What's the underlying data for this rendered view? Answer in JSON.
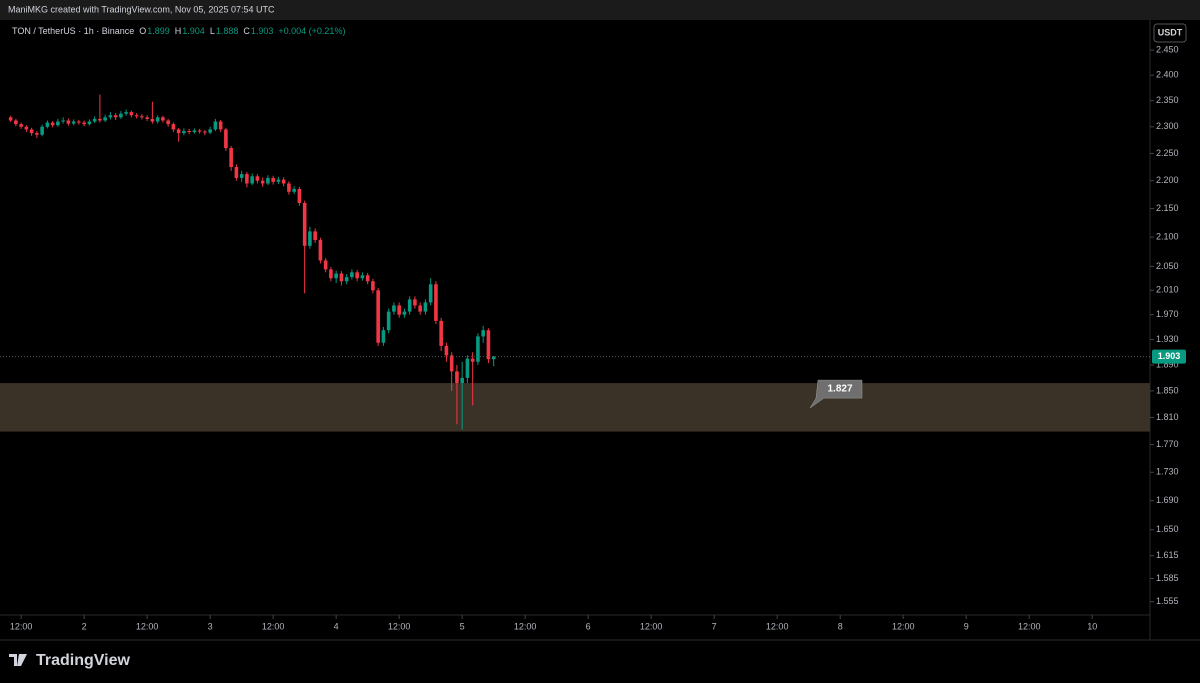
{
  "header": {
    "attribution": "ManiMKG created with TradingView.com, Nov 05, 2025 07:54 UTC"
  },
  "footer": {
    "brand": "TradingView"
  },
  "chart_data": {
    "type": "candlestick",
    "symbol": "TON / TetherUS · 1h · Binance",
    "ohlc_labels": [
      "O",
      "H",
      "L",
      "C"
    ],
    "change": "+0.004 (+0.21%)",
    "currency": "USDT",
    "up_color": "#089981",
    "down_color": "#f23645",
    "log_scale": true,
    "grid": false,
    "x": [
      10,
      11,
      12,
      13,
      14,
      15,
      16,
      17,
      18,
      19,
      20,
      21,
      22,
      23,
      24,
      25,
      26,
      27,
      28,
      29,
      30,
      31,
      32,
      33,
      34,
      35,
      36,
      37,
      38,
      39,
      40,
      41,
      42,
      43,
      44,
      45,
      46,
      47,
      48,
      49,
      50,
      51,
      52,
      53,
      54,
      55,
      56,
      57,
      58,
      59,
      60,
      61,
      62,
      63,
      64,
      65,
      66,
      67,
      68,
      69,
      70,
      71,
      72,
      73,
      74,
      75,
      76,
      77,
      78,
      79,
      80,
      81,
      82,
      83,
      84,
      85,
      86,
      87,
      88,
      89,
      90,
      91,
      92,
      93,
      94,
      95,
      96,
      97,
      98,
      99,
      100,
      101,
      102
    ],
    "open": [
      2.318,
      2.312,
      2.305,
      2.3,
      2.295,
      2.288,
      2.285,
      2.3,
      2.308,
      2.303,
      2.31,
      2.312,
      2.306,
      2.31,
      2.308,
      2.305,
      2.31,
      2.315,
      2.312,
      2.318,
      2.322,
      2.318,
      2.325,
      2.328,
      2.322,
      2.32,
      2.318,
      2.315,
      2.31,
      2.318,
      2.312,
      2.305,
      2.295,
      2.288,
      2.292,
      2.29,
      2.293,
      2.291,
      2.289,
      2.295,
      2.31,
      2.295,
      2.26,
      2.225,
      2.205,
      2.212,
      2.195,
      2.208,
      2.2,
      2.195,
      2.205,
      2.198,
      2.202,
      2.195,
      2.18,
      2.185,
      2.16,
      2.085,
      2.11,
      2.095,
      2.06,
      2.045,
      2.03,
      2.038,
      2.025,
      2.032,
      2.04,
      2.03,
      2.035,
      2.025,
      2.01,
      1.925,
      1.945,
      1.975,
      1.985,
      1.97,
      1.975,
      1.995,
      1.985,
      1.975,
      1.99,
      2.02,
      1.96,
      1.92,
      1.905,
      1.88,
      1.862,
      1.87,
      1.9,
      1.895,
      1.935,
      1.945,
      1.899
    ],
    "high": [
      2.321,
      2.315,
      2.308,
      2.303,
      2.298,
      2.292,
      2.304,
      2.312,
      2.311,
      2.315,
      2.318,
      2.316,
      2.314,
      2.313,
      2.312,
      2.314,
      2.32,
      2.362,
      2.323,
      2.328,
      2.326,
      2.33,
      2.333,
      2.331,
      2.326,
      2.324,
      2.322,
      2.348,
      2.322,
      2.321,
      2.315,
      2.308,
      2.298,
      2.297,
      2.296,
      2.297,
      2.296,
      2.294,
      2.3,
      2.315,
      2.313,
      2.298,
      2.264,
      2.23,
      2.218,
      2.216,
      2.213,
      2.212,
      2.206,
      2.21,
      2.209,
      2.207,
      2.206,
      2.199,
      2.19,
      2.189,
      2.164,
      2.118,
      2.115,
      2.099,
      2.064,
      2.049,
      2.043,
      2.042,
      2.037,
      2.045,
      2.044,
      2.04,
      2.039,
      2.029,
      2.014,
      1.95,
      1.98,
      1.99,
      1.99,
      1.98,
      2.0,
      2.0,
      1.99,
      1.995,
      2.03,
      2.025,
      1.965,
      1.925,
      1.91,
      1.89,
      1.895,
      1.905,
      1.91,
      1.94,
      1.952,
      1.948,
      1.904
    ],
    "low": [
      2.309,
      2.301,
      2.296,
      2.29,
      2.283,
      2.279,
      2.282,
      2.297,
      2.299,
      2.3,
      2.306,
      2.302,
      2.303,
      2.304,
      2.301,
      2.302,
      2.307,
      2.308,
      2.309,
      2.314,
      2.313,
      2.315,
      2.321,
      2.318,
      2.316,
      2.314,
      2.311,
      2.306,
      2.306,
      2.308,
      2.3,
      2.29,
      2.272,
      2.284,
      2.286,
      2.287,
      2.287,
      2.284,
      2.286,
      2.292,
      2.29,
      2.255,
      2.218,
      2.2,
      2.198,
      2.188,
      2.192,
      2.195,
      2.189,
      2.192,
      2.193,
      2.194,
      2.19,
      2.175,
      2.176,
      2.155,
      2.005,
      2.08,
      2.09,
      2.055,
      2.04,
      2.025,
      2.022,
      2.018,
      2.02,
      2.028,
      2.025,
      2.026,
      2.02,
      2.005,
      1.92,
      1.92,
      1.94,
      1.97,
      1.965,
      1.965,
      1.97,
      1.98,
      1.97,
      1.97,
      1.985,
      1.955,
      1.912,
      1.895,
      1.85,
      1.8,
      1.792,
      1.862,
      1.828,
      1.89,
      1.925,
      1.893,
      1.888
    ],
    "close": [
      2.312,
      2.305,
      2.3,
      2.295,
      2.288,
      2.285,
      2.3,
      2.308,
      2.303,
      2.31,
      2.312,
      2.306,
      2.31,
      2.308,
      2.305,
      2.31,
      2.315,
      2.312,
      2.318,
      2.322,
      2.318,
      2.325,
      2.328,
      2.322,
      2.32,
      2.318,
      2.315,
      2.31,
      2.318,
      2.312,
      2.305,
      2.295,
      2.288,
      2.292,
      2.29,
      2.293,
      2.291,
      2.289,
      2.295,
      2.31,
      2.295,
      2.26,
      2.225,
      2.205,
      2.212,
      2.195,
      2.208,
      2.2,
      2.195,
      2.205,
      2.198,
      2.202,
      2.195,
      2.18,
      2.185,
      2.16,
      2.085,
      2.11,
      2.095,
      2.06,
      2.045,
      2.03,
      2.038,
      2.025,
      2.032,
      2.04,
      2.03,
      2.035,
      2.025,
      2.01,
      1.925,
      1.945,
      1.975,
      1.985,
      1.97,
      1.975,
      1.995,
      1.985,
      1.975,
      1.99,
      2.02,
      1.96,
      1.92,
      1.905,
      1.88,
      1.862,
      1.87,
      1.9,
      1.895,
      1.935,
      1.945,
      1.899,
      1.903
    ],
    "zone": {
      "top": 1.862,
      "bottom": 1.789,
      "color": "#3a3227"
    },
    "zone_label": 1.827,
    "xlim": [
      9.5,
      225.1
    ],
    "xticks": [
      {
        "value": 12,
        "label": "12:00"
      },
      {
        "value": 24,
        "label": "2"
      },
      {
        "value": 36,
        "label": "12:00"
      },
      {
        "value": 48,
        "label": "3"
      },
      {
        "value": 60,
        "label": "12:00"
      },
      {
        "value": 72,
        "label": "4"
      },
      {
        "value": 84,
        "label": "12:00"
      },
      {
        "value": 96,
        "label": "5"
      },
      {
        "value": 108,
        "label": "12:00"
      },
      {
        "value": 120,
        "label": "6"
      },
      {
        "value": 132,
        "label": "12:00"
      },
      {
        "value": 144,
        "label": "7"
      },
      {
        "value": 156,
        "label": "12:00"
      },
      {
        "value": 168,
        "label": "8"
      },
      {
        "value": 180,
        "label": "12:00"
      },
      {
        "value": 192,
        "label": "9"
      },
      {
        "value": 204,
        "label": "12:00"
      },
      {
        "value": 216,
        "label": "10"
      }
    ],
    "ylim": [
      1.538,
      2.491
    ],
    "yticks": [
      {
        "value": 2.45,
        "label": "2.450"
      },
      {
        "value": 2.4,
        "label": "2.400"
      },
      {
        "value": 2.35,
        "label": "2.350"
      },
      {
        "value": 2.3,
        "label": "2.300"
      },
      {
        "value": 2.25,
        "label": "2.250"
      },
      {
        "value": 2.2,
        "label": "2.200"
      },
      {
        "value": 2.15,
        "label": "2.150"
      },
      {
        "value": 2.1,
        "label": "2.100"
      },
      {
        "value": 2.05,
        "label": "2.050"
      },
      {
        "value": 2.01,
        "label": "2.010"
      },
      {
        "value": 1.97,
        "label": "1.970"
      },
      {
        "value": 1.93,
        "label": "1.930"
      },
      {
        "value": 1.89,
        "label": "1.890"
      },
      {
        "value": 1.85,
        "label": "1.850"
      },
      {
        "value": 1.81,
        "label": "1.810"
      },
      {
        "value": 1.77,
        "label": "1.770"
      },
      {
        "value": 1.73,
        "label": "1.730"
      },
      {
        "value": 1.69,
        "label": "1.690"
      },
      {
        "value": 1.65,
        "label": "1.650"
      },
      {
        "value": 1.615,
        "label": "1.615"
      },
      {
        "value": 1.585,
        "label": "1.585"
      },
      {
        "value": 1.555,
        "label": "1.555"
      }
    ]
  }
}
